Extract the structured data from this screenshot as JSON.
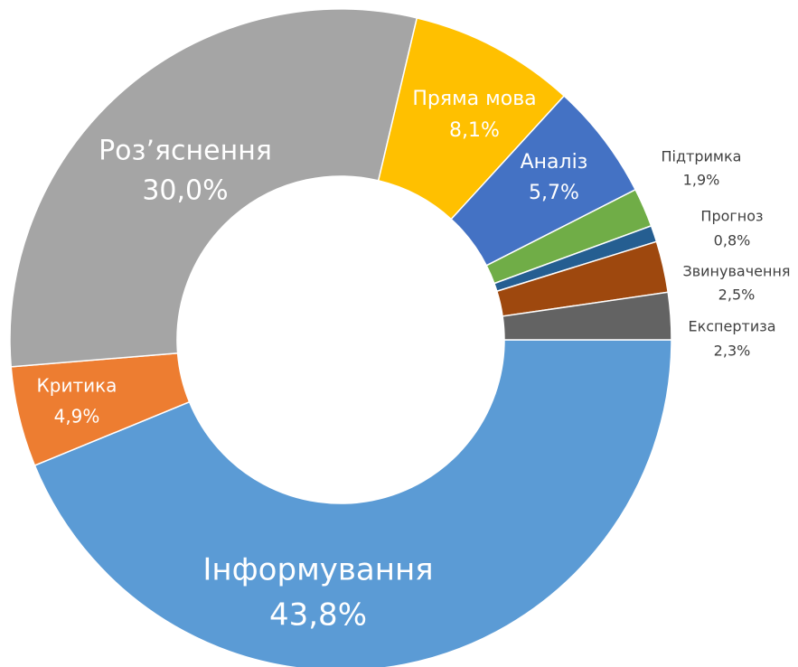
{
  "chart_data": {
    "type": "donut",
    "categories": [
      "Інформування",
      "Критика",
      "Роз’яснення",
      "Пряма мова",
      "Аналіз",
      "Підтримка",
      "Прогноз",
      "Звинувачення",
      "Експертиза"
    ],
    "values": [
      43.8,
      4.9,
      30.0,
      8.1,
      5.7,
      1.9,
      0.8,
      2.5,
      2.3
    ],
    "value_labels": [
      "43,8%",
      "4,9%",
      "30,0%",
      "8,1%",
      "5,7%",
      "1,9%",
      "0,8%",
      "2,5%",
      "2,3%"
    ],
    "colors": [
      "#5b9bd5",
      "#ed7d31",
      "#a5a5a5",
      "#ffc000",
      "#4472c4",
      "#70ad47",
      "#255e91",
      "#9e480e",
      "#636363"
    ]
  }
}
